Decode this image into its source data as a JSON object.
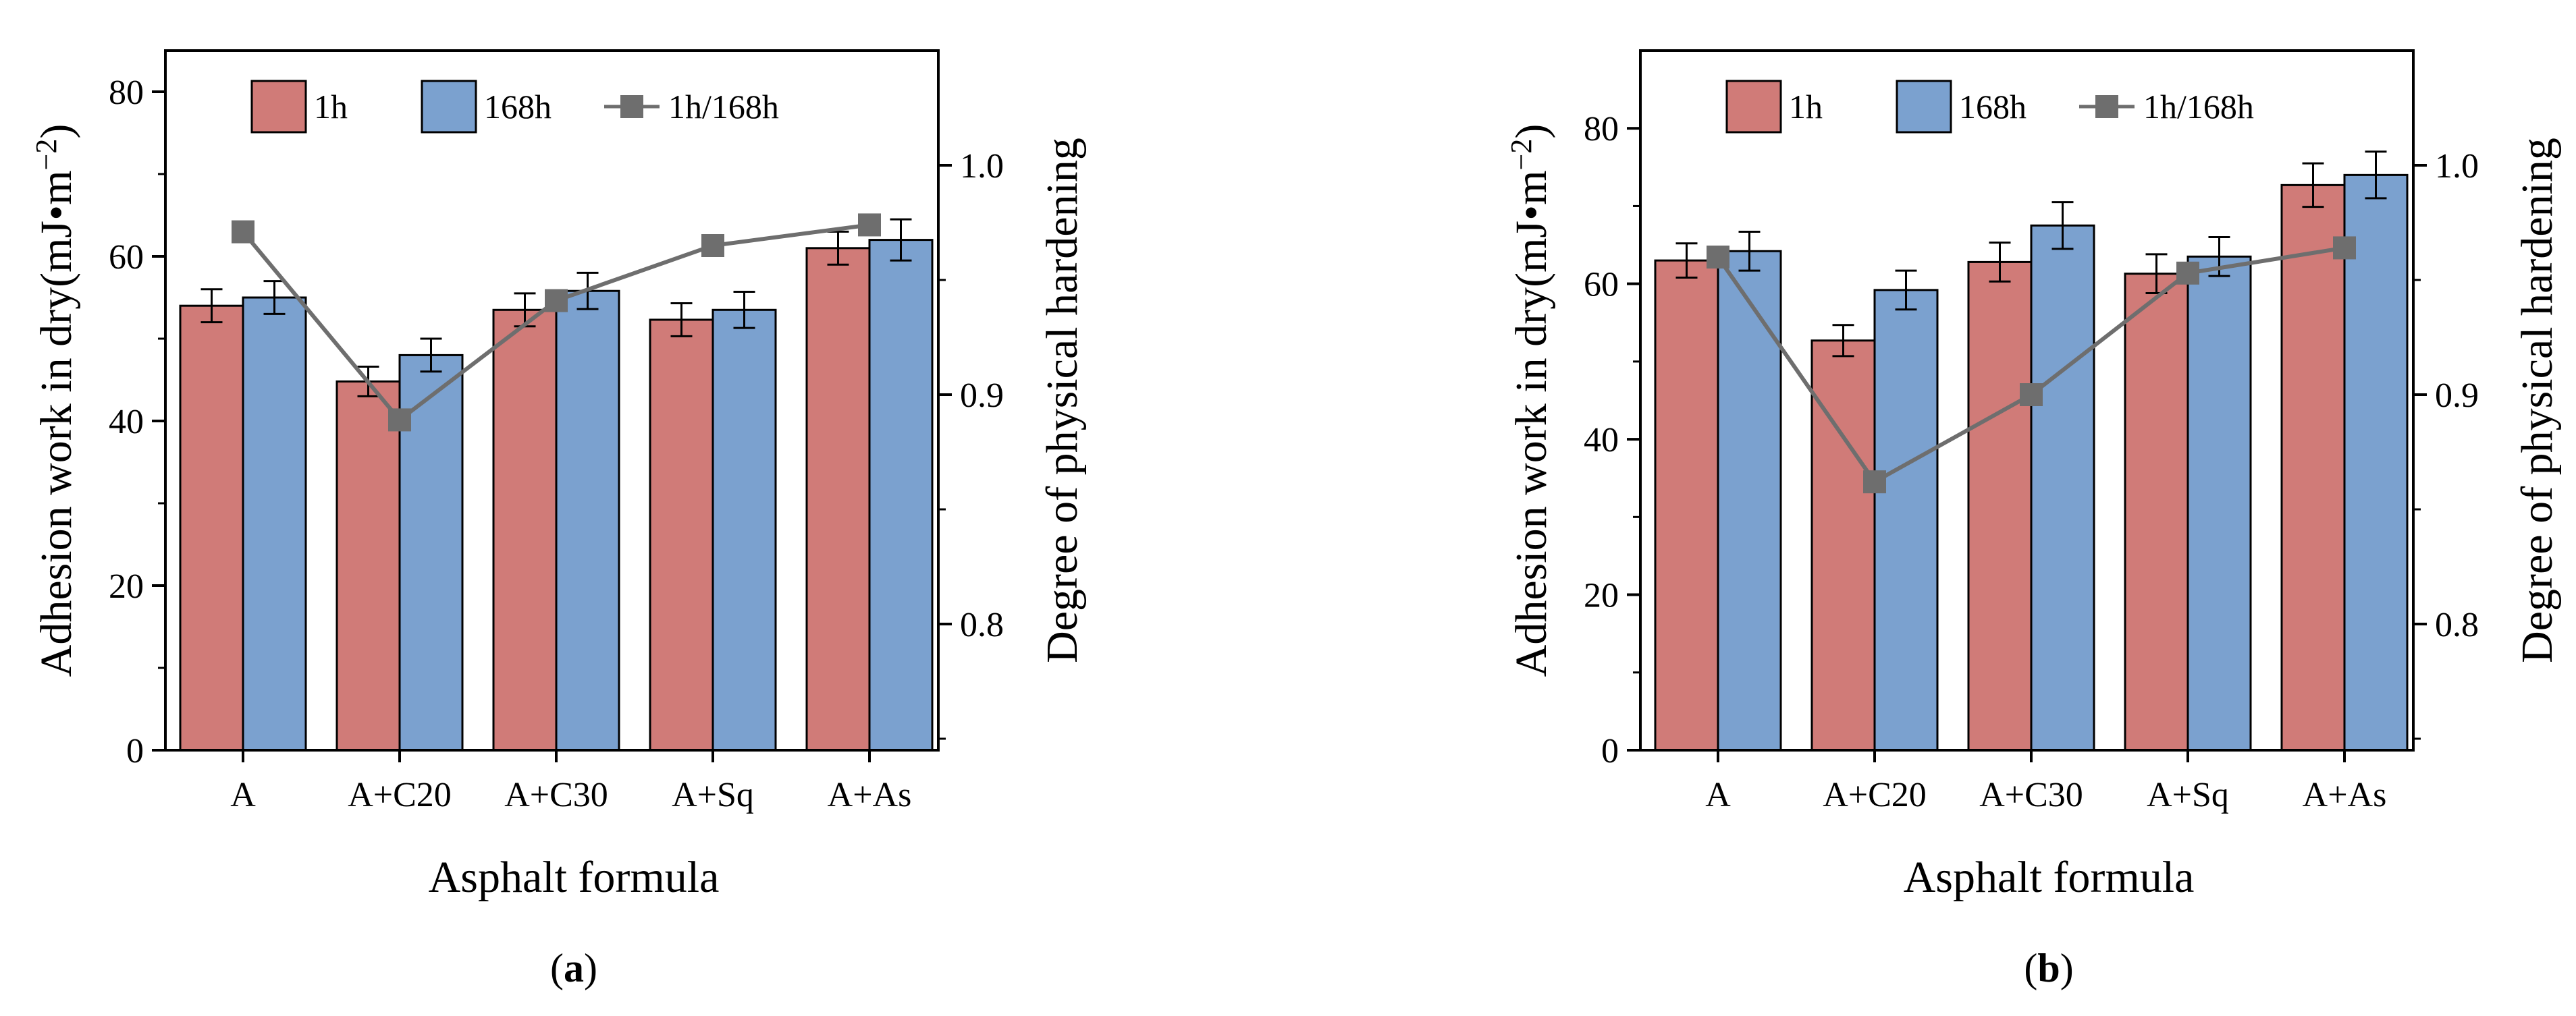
{
  "colors": {
    "bar_1h": "#d07b78",
    "bar_168h": "#7ba1cf",
    "line": "#6e6e6e",
    "axis": "#000000",
    "error_bar": "#000000"
  },
  "chart_data": [
    {
      "type": "bar",
      "panel_label": "(a)",
      "panel_letter": "a",
      "xlabel": "Asphalt formula",
      "ylabel": "Adhesion work in dry(mJ•m",
      "ylabel_unit_exp": "−2",
      "ylabel_close": ")",
      "y2label": "Degree of physical hardening",
      "categories": [
        "A",
        "A+C20",
        "A+C30",
        "A+Sq",
        "A+As"
      ],
      "ylim": [
        0,
        85
      ],
      "yticks": [
        0,
        20,
        40,
        60,
        80
      ],
      "ytick_labels": [
        "0",
        "20",
        "40",
        "60",
        "80"
      ],
      "y2lim": [
        0.745,
        1.05
      ],
      "y2ticks": [
        0.8,
        0.9,
        1.0
      ],
      "y2tick_labels": [
        "0.8",
        "0.9",
        "1.0"
      ],
      "legend": {
        "labels": [
          "1h",
          "168h",
          "1h/168h"
        ],
        "placement": "top"
      },
      "series": [
        {
          "name": "1h",
          "kind": "bar",
          "values": [
            54.0,
            44.8,
            53.5,
            52.3,
            61.0
          ],
          "errors": [
            2.0,
            1.8,
            2.0,
            2.0,
            2.0
          ]
        },
        {
          "name": "168h",
          "kind": "bar",
          "values": [
            55.0,
            48.0,
            55.8,
            53.5,
            62.0
          ],
          "errors": [
            2.0,
            2.0,
            2.2,
            2.2,
            2.5
          ]
        },
        {
          "name": "1h/168h",
          "kind": "line",
          "axis": "right",
          "values": [
            0.971,
            0.889,
            0.941,
            0.965,
            0.974
          ]
        }
      ]
    },
    {
      "type": "bar",
      "panel_label": "(b)",
      "panel_letter": "b",
      "xlabel": "Asphalt formula",
      "ylabel": "Adhesion work in dry(mJ•m",
      "ylabel_unit_exp": "−2",
      "ylabel_close": ")",
      "y2label": "Degree of physical hardening",
      "categories": [
        "A",
        "A+C20",
        "A+C30",
        "A+Sq",
        "A+As"
      ],
      "ylim": [
        0,
        90
      ],
      "yticks": [
        0,
        20,
        40,
        60,
        80
      ],
      "ytick_labels": [
        "0",
        "20",
        "40",
        "60",
        "80"
      ],
      "y2lim": [
        0.745,
        1.05
      ],
      "y2ticks": [
        0.8,
        0.9,
        1.0
      ],
      "y2tick_labels": [
        "0.8",
        "0.9",
        "1.0"
      ],
      "legend": {
        "labels": [
          "1h",
          "168h",
          "1h/168h"
        ],
        "placement": "top"
      },
      "series": [
        {
          "name": "1h",
          "kind": "bar",
          "values": [
            63.0,
            52.7,
            62.8,
            61.3,
            72.7
          ],
          "errors": [
            2.2,
            2.0,
            2.5,
            2.5,
            2.8
          ]
        },
        {
          "name": "168h",
          "kind": "bar",
          "values": [
            64.2,
            59.2,
            67.5,
            63.5,
            74.0
          ],
          "errors": [
            2.5,
            2.5,
            3.0,
            2.5,
            3.0
          ]
        },
        {
          "name": "1h/168h",
          "kind": "line",
          "axis": "right",
          "values": [
            0.96,
            0.862,
            0.9,
            0.953,
            0.964
          ]
        }
      ]
    }
  ]
}
